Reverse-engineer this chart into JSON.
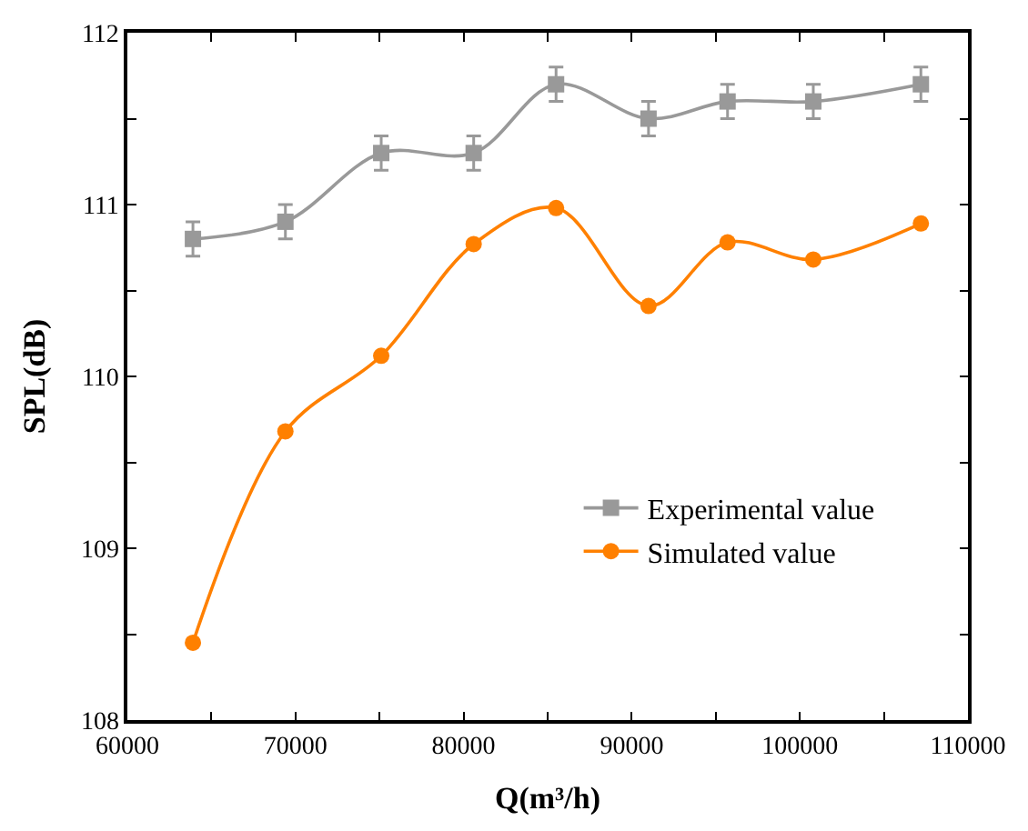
{
  "chart_data": {
    "type": "line",
    "xlabel": "Q(m³/h)",
    "ylabel": "SPL(dB)",
    "x": [
      63900,
      69400,
      75100,
      80600,
      85500,
      91000,
      95700,
      100800,
      107200
    ],
    "series": [
      {
        "name": "Experimental value",
        "color": "#999999",
        "marker": "square",
        "values": [
          110.8,
          110.9,
          111.3,
          111.3,
          111.7,
          111.5,
          111.6,
          111.6,
          111.7
        ],
        "errors": [
          0.1,
          0.1,
          0.1,
          0.1,
          0.1,
          0.1,
          0.1,
          0.1,
          0.1
        ]
      },
      {
        "name": "Simulated value",
        "color": "#ff8000",
        "marker": "circle",
        "values": [
          108.45,
          109.68,
          110.12,
          110.77,
          110.98,
          110.41,
          110.78,
          110.68,
          110.89
        ]
      }
    ],
    "xlim": [
      60000,
      110000
    ],
    "xticks": [
      60000,
      {
        "value": 65000,
        "label": null
      },
      70000,
      {
        "value": 75000,
        "label": null
      },
      80000,
      {
        "value": 85000,
        "label": null
      },
      90000,
      {
        "value": 95000,
        "label": null
      },
      100000,
      {
        "value": 105000,
        "label": null
      },
      110000
    ],
    "ylim": [
      108,
      112
    ],
    "yticks": [
      108,
      {
        "value": 108.5,
        "label": null
      },
      109,
      {
        "value": 109.5,
        "label": null
      },
      110,
      {
        "value": 110.5,
        "label": null
      },
      111,
      {
        "value": 111.5,
        "label": null
      },
      112
    ],
    "legend": "bottom right",
    "line_style": "solid"
  }
}
